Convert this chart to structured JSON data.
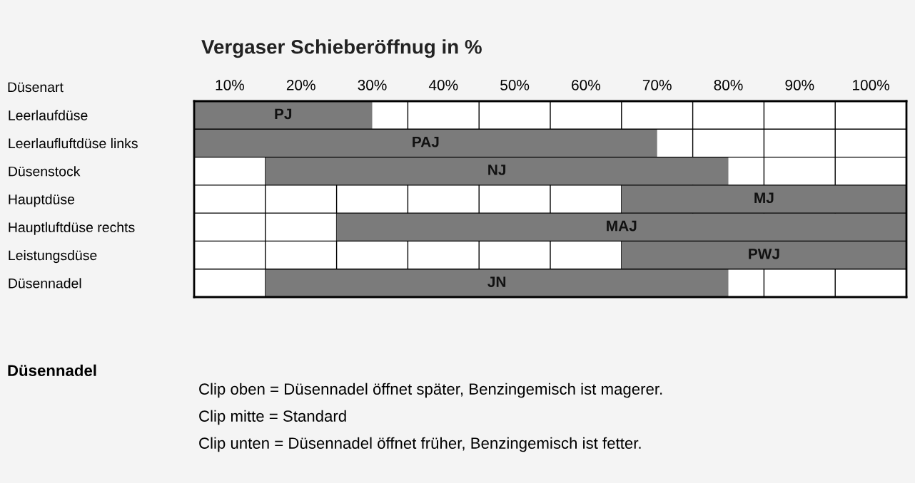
{
  "chart_data": {
    "type": "bar",
    "orientation": "horizontal",
    "title": "Vergaser Schieberöffnug in %",
    "ylabel": "Düsenart",
    "categories": [
      "Leerlaufdüse",
      "Leerlaufluftdüse links",
      "Düsenstock",
      "Hauptdüse",
      "Hauptluftdüse rechts",
      "Leistungsdüse",
      "Düsennadel"
    ],
    "base": [
      5,
      5,
      15,
      65,
      25,
      65,
      15
    ],
    "values": [
      25,
      65,
      65,
      40,
      80,
      40,
      65
    ],
    "value_labels": [
      "PJ",
      "PAJ",
      "NJ",
      "MJ",
      "MAJ",
      "PWJ",
      "JN"
    ],
    "color": "#7b7b7b",
    "xlim": [
      5,
      105
    ],
    "xticks": [
      {
        "value": 10,
        "label": "10%"
      },
      {
        "value": 20,
        "label": "20%"
      },
      {
        "value": 30,
        "label": "30%"
      },
      {
        "value": 40,
        "label": "40%"
      },
      {
        "value": 50,
        "label": "50%"
      },
      {
        "value": 60,
        "label": "60%"
      },
      {
        "value": 70,
        "label": "70%"
      },
      {
        "value": 80,
        "label": "80%"
      },
      {
        "value": 90,
        "label": "90%"
      },
      {
        "value": 100,
        "label": "100%"
      }
    ],
    "grid": true,
    "annotations": [
      "Düsennadel",
      "Clip oben = Düsennadel öffnet später, Benzingemisch ist magerer.",
      "Clip mitte = Standard",
      "Clip unten = Düsennadel öffnet früher, Benzingemisch ist fetter."
    ]
  }
}
